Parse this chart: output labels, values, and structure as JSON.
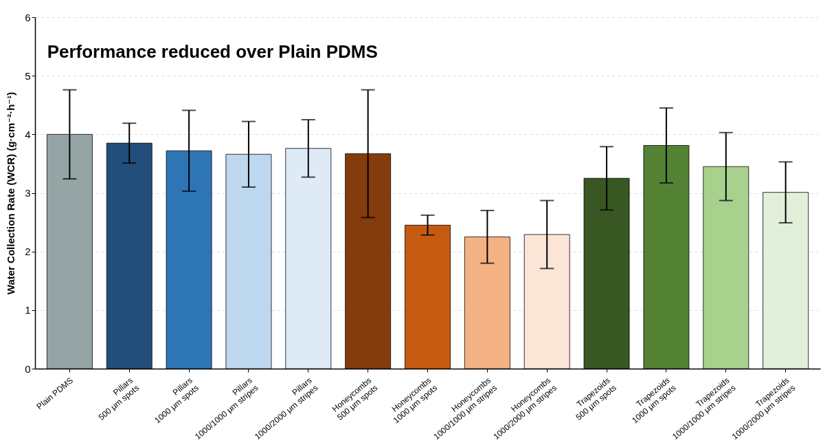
{
  "chart_data": {
    "type": "bar",
    "title": "Performance reduced over Plain PDMS",
    "ylabel": "Water Collection Rate (WCR) (g·cm⁻²·h⁻¹)",
    "categories": [
      "Plain PDMS",
      "Pillars\n500 μm spots",
      "Pillars\n1000 μm spots",
      "Pillars\n1000/1000 μm stripes",
      "Pillars\n1000/2000 μm stripes",
      "Honeycombs\n500 μm spots",
      "Honeycombs\n1000 μm spots",
      "Honeycombs\n1000/1000 μm stripes",
      "Honeycombs\n1000/2000 μm stripes",
      "Trapezoids\n500 μm spots",
      "Trapezoids\n1000 μm spots",
      "Trapezoids\n1000/1000 μm stripes",
      "Trapezoids\n1000/2000 μm stripes"
    ],
    "values": [
      4.0,
      3.85,
      3.72,
      3.66,
      3.76,
      3.67,
      2.45,
      2.25,
      2.29,
      3.25,
      3.81,
      3.45,
      3.01
    ],
    "errors": [
      0.76,
      0.34,
      0.69,
      0.56,
      0.49,
      1.09,
      0.17,
      0.45,
      0.58,
      0.54,
      0.64,
      0.58,
      0.52
    ],
    "colors": [
      "#95a5a6",
      "#214e7a",
      "#2e75b6",
      "#bdd7ee",
      "#deebf7",
      "#843c0c",
      "#c55a11",
      "#f4b183",
      "#fbe5d6",
      "#385723",
      "#548235",
      "#a9d18e",
      "#e2efda"
    ],
    "ylim": [
      0,
      6
    ],
    "yticks": [
      0,
      1,
      2,
      3,
      4,
      5,
      6
    ],
    "grid": "y"
  }
}
